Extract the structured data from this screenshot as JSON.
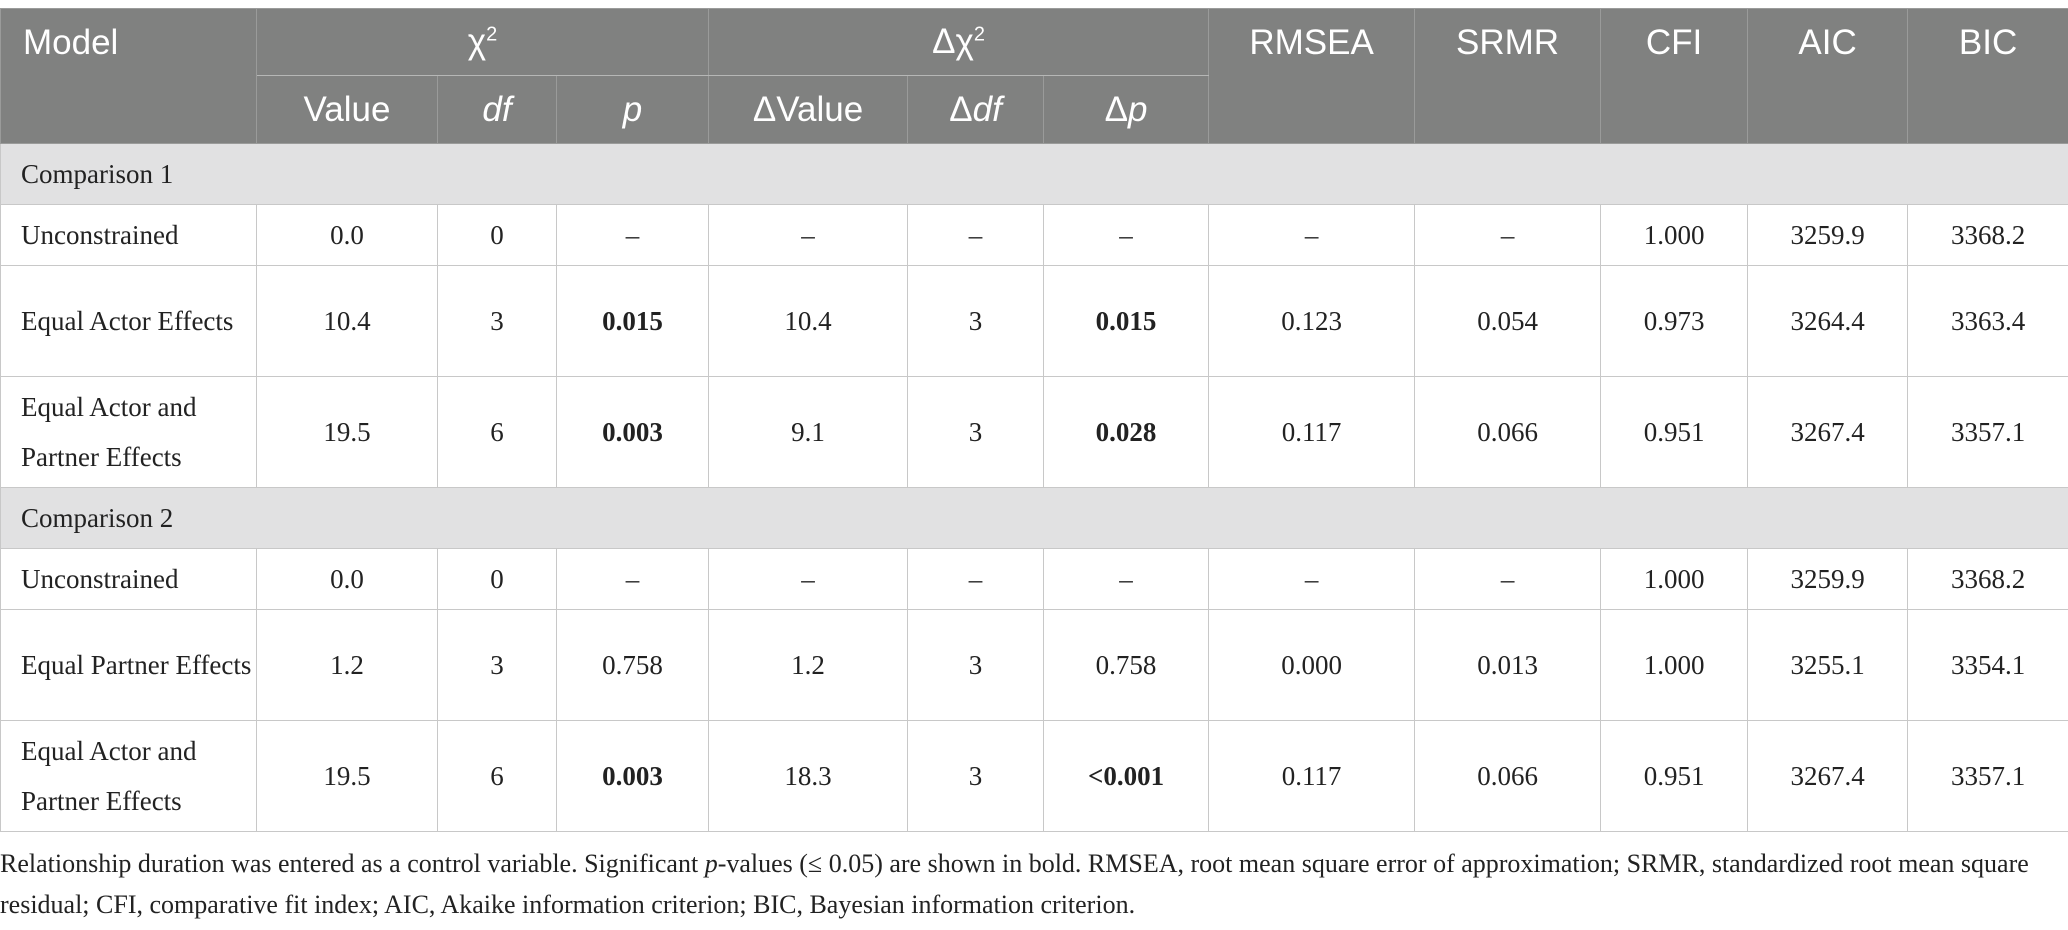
{
  "headers": {
    "model": "Model",
    "chi2": "χ",
    "chi2_sup": "2",
    "dchi2": "Δχ",
    "dchi2_sup": "2",
    "rmsea": "RMSEA",
    "srmr": "SRMR",
    "cfi": "CFI",
    "aic": "AIC",
    "bic": "BIC",
    "value": "Value",
    "df": "df",
    "p": "p",
    "dvalue": "ΔValue",
    "ddf_delta": "Δ",
    "ddf": "df",
    "dp_delta": "Δ",
    "dp": "p"
  },
  "sections": [
    {
      "title": "Comparison 1",
      "rows": [
        {
          "model": "Unconstrained",
          "value": "0.0",
          "df": "0",
          "p": "–",
          "dvalue": "–",
          "ddf": "–",
          "dp": "–",
          "rmsea": "–",
          "srmr": "–",
          "cfi": "1.000",
          "aic": "3259.9",
          "bic": "3368.2"
        },
        {
          "model": "Equal Actor Effects",
          "value": "10.4",
          "df": "3",
          "p": "0.015",
          "dvalue": "10.4",
          "ddf": "3",
          "dp": "0.015",
          "rmsea": "0.123",
          "srmr": "0.054",
          "cfi": "0.973",
          "aic": "3264.4",
          "bic": "3363.4"
        },
        {
          "model": "Equal Actor and Partner Effects",
          "value": "19.5",
          "df": "6",
          "p": "0.003",
          "dvalue": "9.1",
          "ddf": "3",
          "dp": "0.028",
          "rmsea": "0.117",
          "srmr": "0.066",
          "cfi": "0.951",
          "aic": "3267.4",
          "bic": "3357.1"
        }
      ]
    },
    {
      "title": "Comparison 2",
      "rows": [
        {
          "model": "Unconstrained",
          "value": "0.0",
          "df": "0",
          "p": "–",
          "dvalue": "–",
          "ddf": "–",
          "dp": "–",
          "rmsea": "–",
          "srmr": "–",
          "cfi": "1.000",
          "aic": "3259.9",
          "bic": "3368.2"
        },
        {
          "model": "Equal Partner Effects",
          "value": "1.2",
          "df": "3",
          "p": "0.758",
          "dvalue": "1.2",
          "ddf": "3",
          "dp": "0.758",
          "rmsea": "0.000",
          "srmr": "0.013",
          "cfi": "1.000",
          "aic": "3255.1",
          "bic": "3354.1"
        },
        {
          "model": "Equal Actor and Partner Effects",
          "value": "19.5",
          "df": "6",
          "p": "0.003",
          "dvalue": "18.3",
          "ddf": "3",
          "dp": "<0.001",
          "rmsea": "0.117",
          "srmr": "0.066",
          "cfi": "0.951",
          "aic": "3267.4",
          "bic": "3357.1"
        }
      ]
    }
  ],
  "note": {
    "part1": "Relationship duration was entered as a control variable. Significant ",
    "p_italic": "p",
    "part2": "-values (≤ 0.05) are shown in bold. RMSEA, root mean square error of approximation; SRMR, standardized root mean square residual; CFI, comparative fit index; AIC, Akaike information criterion; BIC, Bayesian information criterion."
  }
}
